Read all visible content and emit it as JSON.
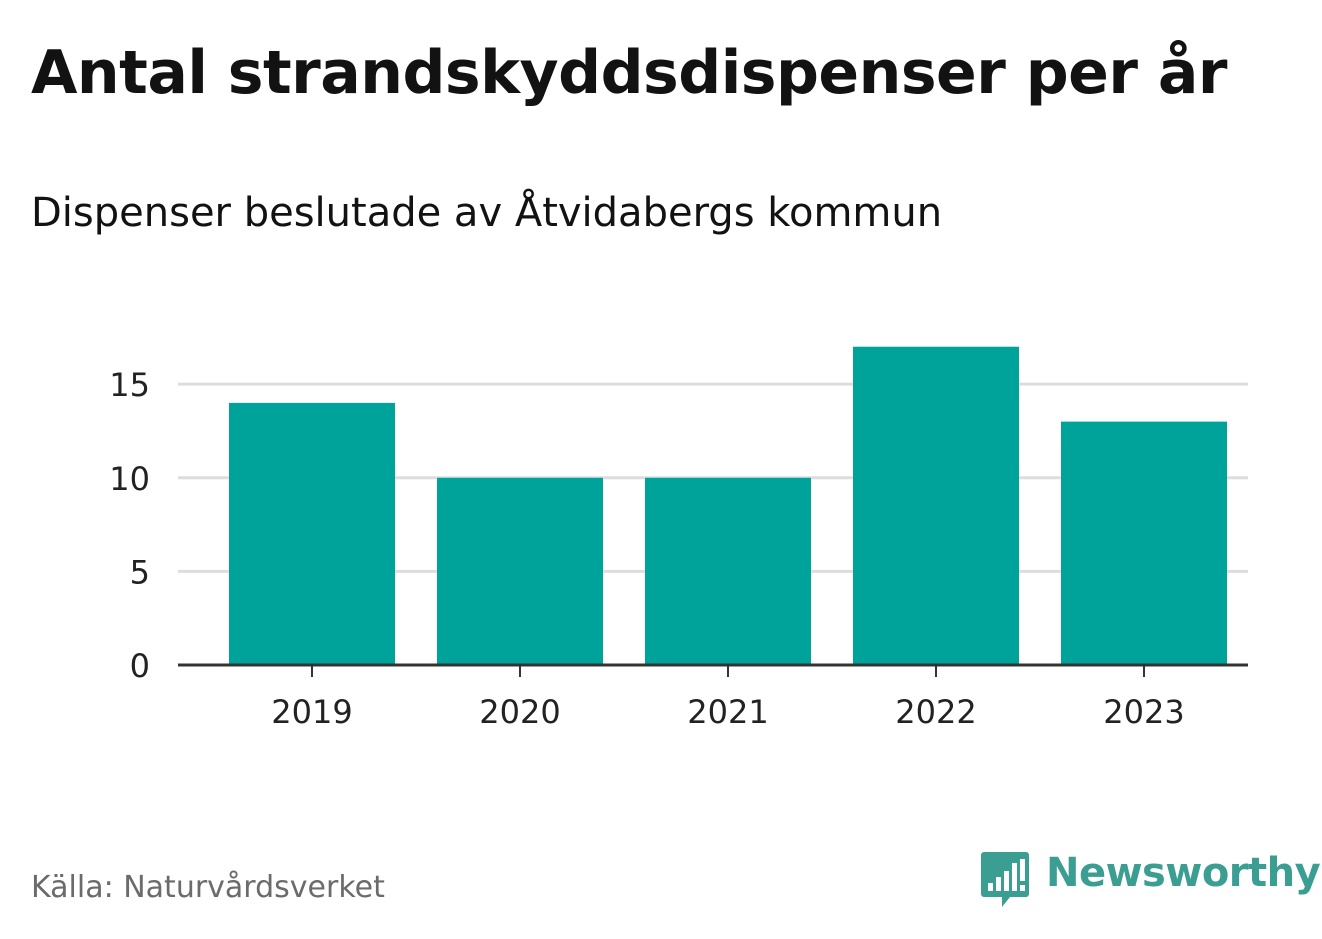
{
  "chart_data": {
    "type": "bar",
    "title": "Antal strandskyddsdispenser per år",
    "subtitle": "Dispenser beslutade av Åtvidabergs kommun",
    "categories": [
      "2019",
      "2020",
      "2021",
      "2022",
      "2023"
    ],
    "values": [
      14,
      10,
      10,
      17,
      13
    ],
    "xlabel": "",
    "ylabel": "",
    "ylim": [
      0,
      18
    ],
    "yticks": [
      0,
      5,
      10,
      15
    ],
    "ytick_labels": [
      "0",
      "5",
      "10",
      "15"
    ],
    "grid": true,
    "bar_color": "#00a39a"
  },
  "source": "Källa: Naturvårdsverket",
  "logo": {
    "text": "Newsworthy",
    "icon": "newsworthy-chart-bubble-icon",
    "color": "#3a9e93"
  }
}
